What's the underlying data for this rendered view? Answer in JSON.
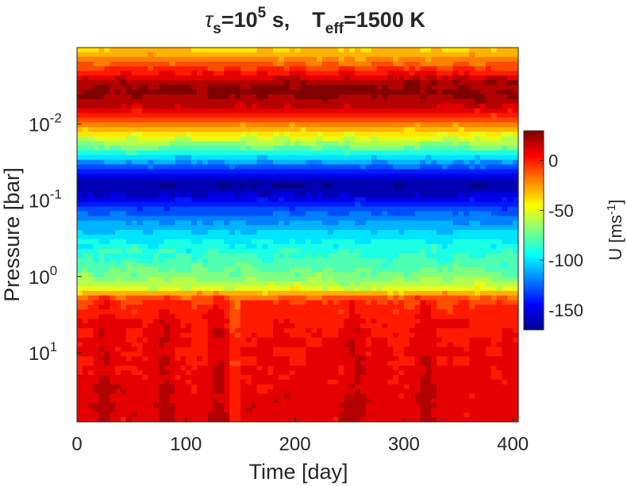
{
  "chart_data": {
    "type": "heatmap",
    "title": {
      "tau_symbol": "τ",
      "tau_sub": "s",
      "eq1": "=10",
      "exp1": "5",
      "unit1": " s,",
      "teff_main": "T",
      "teff_sub": "eff",
      "eq2": "=1500 K"
    },
    "xlabel": "Time [day]",
    "ylabel": "Pressure [bar]",
    "colorbar_label_base": "U [ms",
    "colorbar_label_exp": "-1",
    "colorbar_label_close": "]",
    "xlim": [
      0,
      405
    ],
    "ylim": [
      0.001,
      80
    ],
    "y_scale": "log",
    "y_reversed": true,
    "x_ticks": [
      {
        "value": 0,
        "label": "0"
      },
      {
        "value": 100,
        "label": "100"
      },
      {
        "value": 200,
        "label": "200"
      },
      {
        "value": 300,
        "label": "300"
      },
      {
        "value": 400,
        "label": "400"
      }
    ],
    "y_ticks": [
      {
        "value": 0.01,
        "base": "10",
        "exp": "-2"
      },
      {
        "value": 0.1,
        "base": "10",
        "exp": "-1"
      },
      {
        "value": 1,
        "base": "10",
        "exp": "0"
      },
      {
        "value": 10,
        "base": "10",
        "exp": "1"
      }
    ],
    "colorbar": {
      "range": [
        -170,
        30
      ],
      "colormap": "jet",
      "ticks": [
        {
          "value": 0,
          "label": "0"
        },
        {
          "value": -50,
          "label": "-50"
        },
        {
          "value": -100,
          "label": "-100"
        },
        {
          "value": -150,
          "label": "-150"
        }
      ]
    },
    "pressure_profile": [
      {
        "p": 0.001,
        "u": -38
      },
      {
        "p": 0.0015,
        "u": -20
      },
      {
        "p": 0.0022,
        "u": 5
      },
      {
        "p": 0.003,
        "u": 25
      },
      {
        "p": 0.004,
        "u": 28
      },
      {
        "p": 0.0055,
        "u": 20
      },
      {
        "p": 0.007,
        "u": 5
      },
      {
        "p": 0.01,
        "u": -20
      },
      {
        "p": 0.015,
        "u": -50
      },
      {
        "p": 0.022,
        "u": -80
      },
      {
        "p": 0.03,
        "u": -110
      },
      {
        "p": 0.045,
        "u": -145
      },
      {
        "p": 0.06,
        "u": -165
      },
      {
        "p": 0.08,
        "u": -160
      },
      {
        "p": 0.11,
        "u": -140
      },
      {
        "p": 0.15,
        "u": -125
      },
      {
        "p": 0.22,
        "u": -110
      },
      {
        "p": 0.35,
        "u": -95
      },
      {
        "p": 0.6,
        "u": -82
      },
      {
        "p": 1.0,
        "u": -70
      },
      {
        "p": 1.4,
        "u": -55
      },
      {
        "p": 1.7,
        "u": -25
      },
      {
        "p": 2.0,
        "u": -8
      },
      {
        "p": 4.0,
        "u": 4
      },
      {
        "p": 10,
        "u": 6
      },
      {
        "p": 20,
        "u": 8
      },
      {
        "p": 40,
        "u": 10
      },
      {
        "p": 80,
        "u": 10
      }
    ],
    "deep_layer_fast_events_days": [
      25,
      80,
      130,
      255,
      320
    ]
  }
}
